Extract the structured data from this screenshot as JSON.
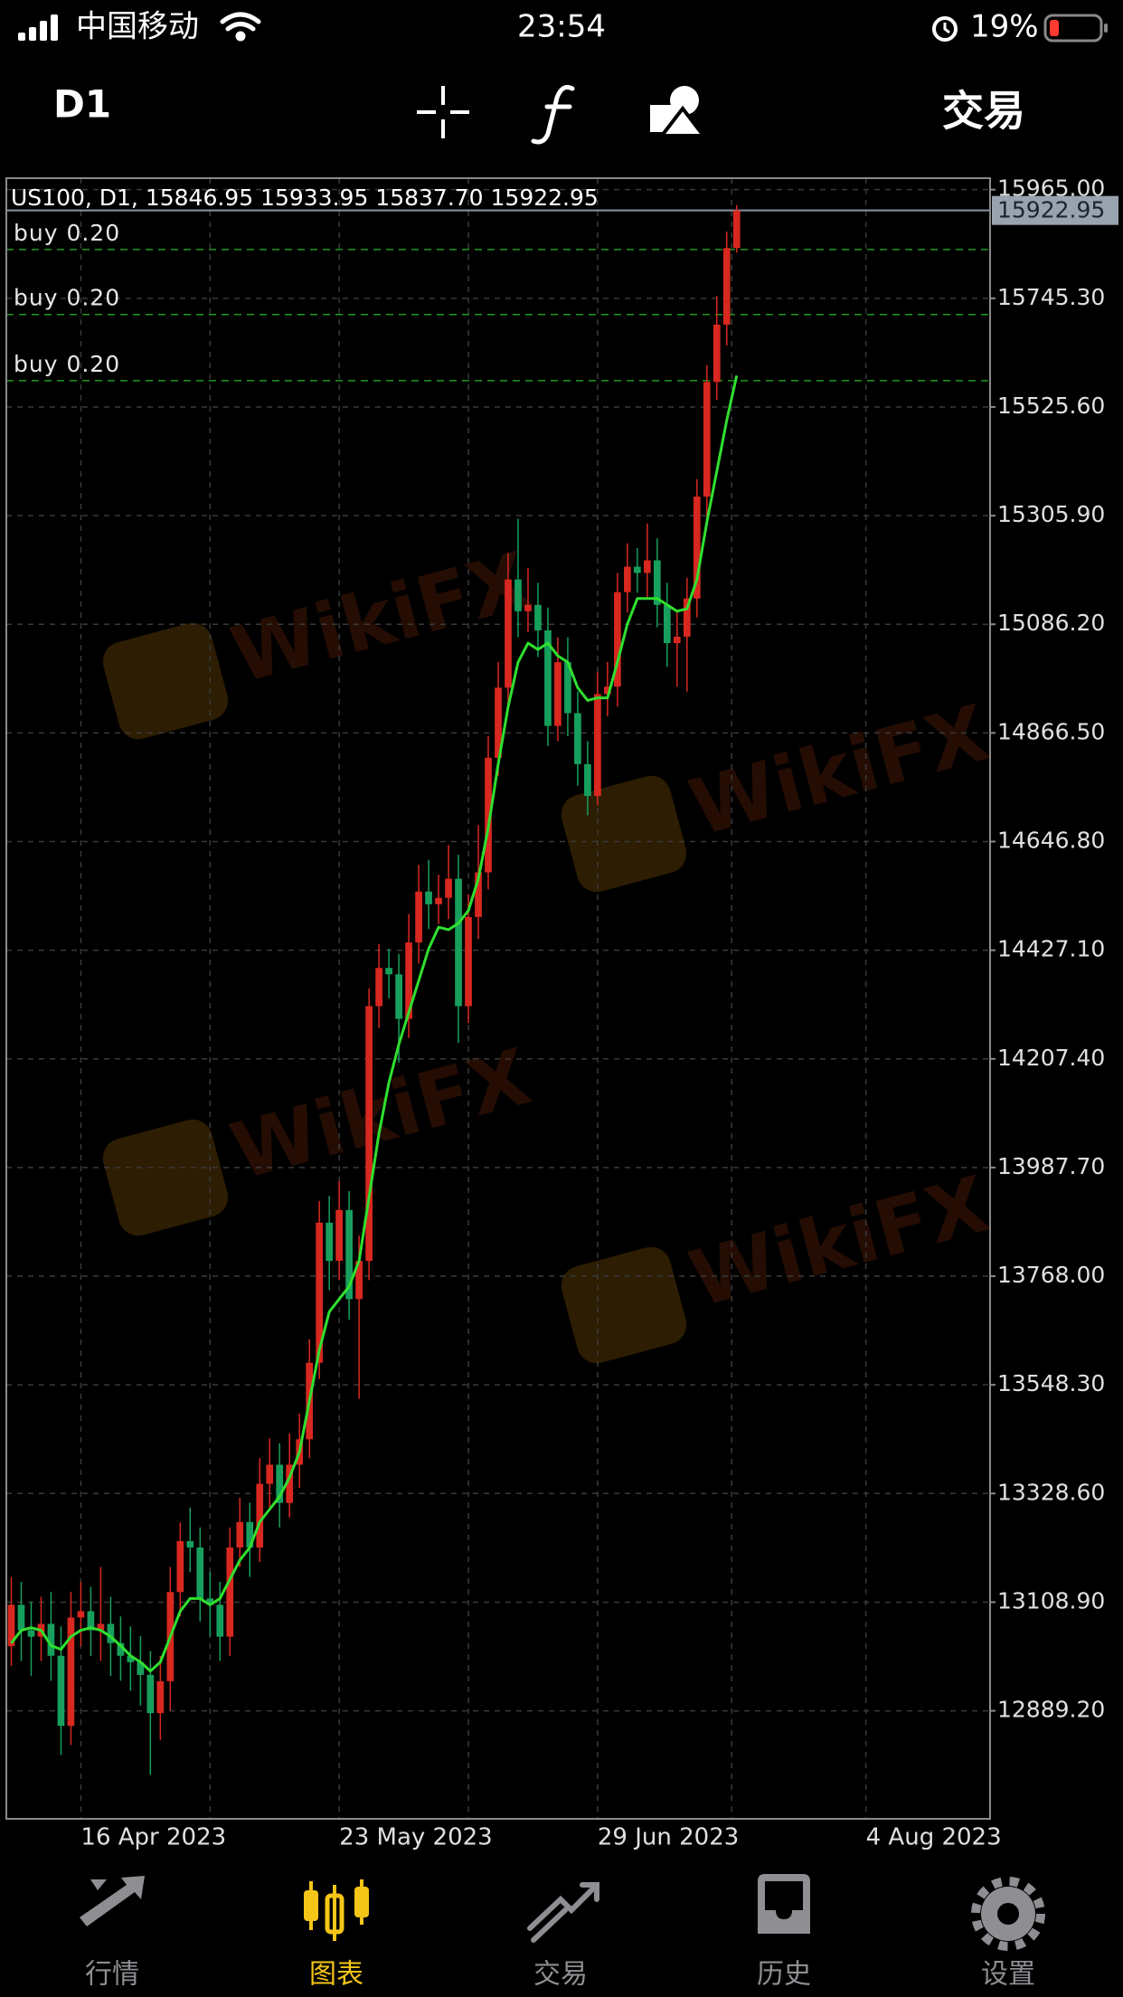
{
  "status_bar": {
    "carrier": "中国移动",
    "time": "23:54",
    "battery": "19%"
  },
  "toolbar": {
    "timeframe": "D1",
    "trade": "交易"
  },
  "watermark": "WikiFX",
  "tab_bar": {
    "tabs": [
      "行情",
      "图表",
      "交易",
      "历史",
      "设置"
    ],
    "active": 1,
    "color": "#8e8e93",
    "active_color": "#f5c518"
  },
  "chart_data": {
    "type": "candlestick",
    "info": "US100, D1, 15846.95 15933.95 15837.70 15922.95",
    "up_color": "#d8281f",
    "down_color": "#17a05d",
    "ma_color": "#2fe02f",
    "grid": true,
    "ylim": [
      12670.8,
      15988.2
    ],
    "yticks": [
      {
        "value": 15965,
        "label": "15965.00"
      },
      {
        "value": 15745.3,
        "label": "15745.30"
      },
      {
        "value": 15525.6,
        "label": "15525.60"
      },
      {
        "value": 15305.9,
        "label": "15305.90"
      },
      {
        "value": 15086.2,
        "label": "15086.20"
      },
      {
        "value": 14866.5,
        "label": "14866.50"
      },
      {
        "value": 14646.8,
        "label": "14646.80"
      },
      {
        "value": 14427.1,
        "label": "14427.10"
      },
      {
        "value": 14207.4,
        "label": "14207.40"
      },
      {
        "value": 13987.7,
        "label": "13987.70"
      },
      {
        "value": 13768,
        "label": "13768.00"
      },
      {
        "value": 13548.3,
        "label": "13548.30"
      },
      {
        "value": 13328.6,
        "label": "13328.60"
      },
      {
        "value": 13108.9,
        "label": "13108.90"
      },
      {
        "value": 12889.2,
        "label": "12889.20"
      }
    ],
    "current_price": 15922.95,
    "orders": [
      {
        "label": "buy 0.20",
        "price": 15843.9
      },
      {
        "label": "buy 0.20",
        "price": 15712.6
      },
      {
        "label": "buy 0.20",
        "price": 15578.7
      }
    ],
    "categories": [
      null,
      null,
      null,
      null,
      null,
      null,
      null,
      "16 Apr 2023",
      null,
      null,
      null,
      null,
      null,
      null,
      null,
      null,
      null,
      null,
      null,
      null,
      null,
      null,
      null,
      null,
      null,
      null,
      null,
      null,
      null,
      null,
      null,
      null,
      null,
      "23 May 2023",
      null,
      null,
      null,
      null,
      null,
      null,
      null,
      null,
      null,
      null,
      null,
      null,
      null,
      null,
      null,
      null,
      null,
      null,
      null,
      null,
      null,
      null,
      null,
      null,
      null,
      "29 Jun 2023",
      null,
      null,
      null,
      null,
      null,
      null,
      null,
      null,
      null,
      null,
      null,
      null,
      null,
      null,
      null,
      null,
      null,
      null,
      null,
      null,
      null,
      null,
      null,
      null,
      null,
      null,
      "4 Aug 2023",
      null,
      null,
      null,
      null,
      null,
      null,
      null,
      null,
      null,
      null,
      null,
      null
    ],
    "open": [
      13020,
      13103.5,
      13052,
      13039.1,
      13064.9,
      13000.5,
      12858.8,
      13077.8,
      13090.6,
      13052,
      13064.9,
      13026.2,
      13000.5,
      12987.6,
      12961.8,
      12884.6,
      12949,
      13129.3,
      13232.3,
      13219.4,
      13116.4,
      13103.5,
      13039.1,
      13219.4,
      13270.9,
      13219.4,
      13348.2,
      13386.8,
      13309.6,
      13386.8,
      13438.3,
      13592.9,
      13876.2,
      13798.9,
      13901.9,
      13721.7,
      13798.9,
      14314,
      14391.3,
      14378.4,
      14288.3,
      14442.8,
      14545.8,
      14520.1,
      14533,
      14571.6,
      14314,
      14494.3,
      14584.5,
      14816.3,
      14957.9,
      15176.9,
      15112.5,
      15125.4,
      15073.8,
      14880.7,
      15009.5,
      14906.4,
      14803.4,
      14739,
      14945.1,
      14960,
      15151.1,
      15202.6,
      15190,
      15215.5,
      15125.4,
      15048.1,
      15061,
      15138.2,
      15344.3,
      15576.1,
      15692,
      15846.95,
      null,
      null,
      null,
      null,
      null,
      null,
      null,
      null,
      null,
      null,
      null,
      null,
      null,
      null,
      null,
      null,
      null,
      null,
      null,
      null,
      null,
      null,
      null,
      null,
      null
    ],
    "high": [
      13160,
      13150,
      13110,
      13120,
      13130,
      13060,
      13130,
      13150,
      13140,
      13180,
      13120,
      13080,
      13060,
      13040,
      13010,
      13000,
      13180,
      13270,
      13300,
      13260,
      13170,
      13150,
      13260,
      13320,
      13310,
      13400,
      13440,
      13430,
      13450,
      13490,
      13640,
      13920,
      13930,
      13960,
      13940,
      13850,
      14350,
      14440,
      14430,
      14420,
      14500,
      14600,
      14610,
      14580,
      14640,
      14620,
      14540,
      14680,
      14860,
      15010,
      15230,
      15300,
      15200,
      15170,
      15120,
      15060,
      15060,
      14950,
      14850,
      14990,
      15010,
      15190,
      15250,
      15240,
      15290,
      15260,
      15170,
      15110,
      15180,
      15380,
      15610,
      15750,
      15880,
      15933.95,
      null,
      null,
      null,
      null,
      null,
      null,
      null,
      null,
      null,
      null,
      null,
      null,
      null,
      null,
      null,
      null,
      null,
      null,
      null,
      null,
      null,
      null,
      null,
      null,
      null
    ],
    "low": [
      12980,
      12990,
      12960,
      12990,
      12950,
      12800,
      12820,
      13020,
      13000,
      12990,
      12960,
      12950,
      12930,
      12900,
      12760,
      12830,
      12890,
      13080,
      13170,
      13070,
      13040,
      12990,
      13000,
      13180,
      13160,
      13190,
      13300,
      13260,
      13280,
      13340,
      13400,
      13560,
      13740,
      13760,
      13680,
      13520,
      13760,
      14270,
      14330,
      14200,
      14250,
      14400,
      14470,
      14480,
      14490,
      14240,
      14280,
      14450,
      14550,
      14780,
      14920,
      15060,
      15070,
      15020,
      14840,
      14850,
      14860,
      14760,
      14700,
      14720,
      14900,
      14920,
      15110,
      15150,
      15140,
      15080,
      15000,
      14960,
      14950,
      15100,
      15300,
      15540,
      15650,
      15837.7,
      null,
      null,
      null,
      null,
      null,
      null,
      null,
      null,
      null,
      null,
      null,
      null,
      null,
      null,
      null,
      null,
      null,
      null,
      null,
      null,
      null,
      null,
      null,
      null,
      null
    ],
    "close": [
      13103.5,
      13052,
      13039.1,
      13064.9,
      13000.5,
      12858.8,
      13077.8,
      13090.6,
      13052,
      13064.9,
      13026.2,
      13000.5,
      12987.6,
      12961.8,
      12884.6,
      12949,
      13129.3,
      13232.3,
      13219.4,
      13116.4,
      13103.5,
      13039.1,
      13219.4,
      13270.9,
      13219.4,
      13348.2,
      13386.8,
      13309.6,
      13386.8,
      13438.3,
      13592.9,
      13876.2,
      13798.9,
      13901.9,
      13721.7,
      13798.9,
      14314,
      14391.3,
      14378.4,
      14288.3,
      14442.8,
      14545.8,
      14520.1,
      14533,
      14571.6,
      14314,
      14494.3,
      14584.5,
      14816.3,
      14957.9,
      15176.9,
      15112.5,
      15125.4,
      15073.8,
      14880.7,
      15009.5,
      14906.4,
      14803.4,
      14739,
      14945.1,
      14960,
      15151.1,
      15202.6,
      15190,
      15215.5,
      15125.4,
      15048.1,
      15061,
      15138.2,
      15344.3,
      15576.1,
      15692,
      15846.95,
      15922.95,
      null,
      null,
      null,
      null,
      null,
      null,
      null,
      null,
      null,
      null,
      null,
      null,
      null,
      null,
      null,
      null,
      null,
      null,
      null,
      null,
      null,
      null,
      null,
      null,
      null
    ],
    "ma": [
      13026.2,
      13052,
      13057.2,
      13052,
      13021.1,
      13013.4,
      13039.1,
      13052,
      13057.2,
      13052,
      13039.1,
      13021.1,
      13000.5,
      12987.6,
      12969.6,
      12987.6,
      13039.1,
      13090.6,
      13116.4,
      13116.4,
      13103.5,
      13116.4,
      13155,
      13193.7,
      13219.4,
      13270.9,
      13296.7,
      13322.4,
      13361.1,
      13412.6,
      13515.6,
      13618.6,
      13695.9,
      13721.7,
      13747.4,
      13798.9,
      13927.7,
      14056.5,
      14159.5,
      14236.8,
      14301.2,
      14365.6,
      14429.9,
      14473.7,
      14468.6,
      14481.5,
      14507.2,
      14571.6,
      14674.6,
      14803.4,
      14919.3,
      15009.5,
      15048.1,
      15035.2,
      15048.1,
      15022.3,
      15009.5,
      14957.9,
      14932.2,
      14937.4,
      14937.4,
      15009.5,
      15086.7,
      15138.2,
      15138.2,
      15138.2,
      15125.4,
      15112.5,
      15117.6,
      15176.9,
      15292.8,
      15395.8,
      15498.8,
      15589,
      null,
      null,
      null,
      null,
      null,
      null,
      null,
      null,
      null,
      null,
      null,
      null,
      null,
      null,
      null,
      null,
      null,
      null,
      null,
      null,
      null,
      null,
      null,
      null,
      null
    ]
  }
}
